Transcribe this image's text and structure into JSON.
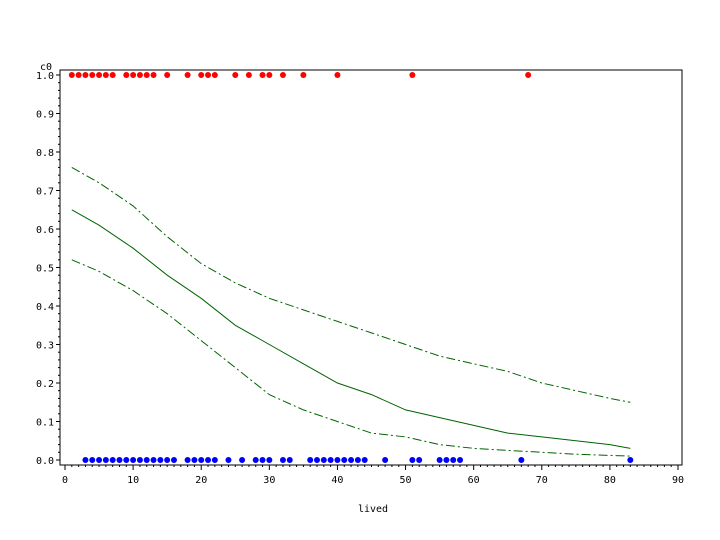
{
  "chart_data": {
    "type": "scatter",
    "title": "",
    "xlabel": "lived",
    "ylabel": "c0",
    "xlim": [
      0,
      90
    ],
    "ylim": [
      0.0,
      1.0
    ],
    "x_ticks": [
      "0",
      "10",
      "20",
      "30",
      "40",
      "50",
      "60",
      "70",
      "80",
      "90"
    ],
    "y_ticks": [
      "0.0",
      "0.1",
      "0.2",
      "0.3",
      "0.4",
      "0.5",
      "0.6",
      "0.7",
      "0.8",
      "0.9",
      "1.0"
    ],
    "grid": false,
    "legend": "none",
    "series": [
      {
        "kind": "points",
        "color": "#ff0000",
        "y": 1.0,
        "x": [
          1,
          2,
          3,
          4,
          5,
          6,
          7,
          9,
          10,
          11,
          12,
          13,
          15,
          18,
          20,
          21,
          22,
          25,
          27,
          29,
          30,
          32,
          35,
          40,
          51,
          68
        ]
      },
      {
        "kind": "points",
        "color": "#0000ff",
        "y": 0.0,
        "x": [
          3,
          4,
          5,
          6,
          7,
          8,
          9,
          10,
          11,
          12,
          13,
          14,
          15,
          16,
          18,
          19,
          20,
          21,
          22,
          24,
          26,
          28,
          29,
          30,
          32,
          33,
          36,
          37,
          38,
          39,
          40,
          41,
          42,
          43,
          44,
          47,
          51,
          52,
          55,
          56,
          57,
          58,
          67,
          83
        ]
      },
      {
        "kind": "line",
        "style": "solid",
        "color": "#006400",
        "x": [
          1,
          5,
          10,
          15,
          20,
          25,
          30,
          35,
          40,
          45,
          50,
          55,
          60,
          65,
          70,
          75,
          80,
          83
        ],
        "y": [
          0.65,
          0.61,
          0.55,
          0.48,
          0.42,
          0.35,
          0.3,
          0.25,
          0.2,
          0.17,
          0.13,
          0.11,
          0.09,
          0.07,
          0.06,
          0.05,
          0.04,
          0.03
        ]
      },
      {
        "kind": "line",
        "style": "dashed",
        "color": "#006400",
        "x": [
          1,
          5,
          10,
          15,
          20,
          25,
          30,
          35,
          40,
          45,
          50,
          55,
          60,
          65,
          70,
          75,
          80,
          83
        ],
        "y": [
          0.76,
          0.72,
          0.66,
          0.58,
          0.51,
          0.46,
          0.42,
          0.39,
          0.36,
          0.33,
          0.3,
          0.27,
          0.25,
          0.23,
          0.2,
          0.18,
          0.16,
          0.15
        ]
      },
      {
        "kind": "line",
        "style": "dashed",
        "color": "#006400",
        "x": [
          1,
          5,
          10,
          15,
          20,
          25,
          30,
          35,
          40,
          45,
          50,
          55,
          60,
          65,
          70,
          75,
          80,
          83
        ],
        "y": [
          0.52,
          0.49,
          0.44,
          0.38,
          0.31,
          0.24,
          0.17,
          0.13,
          0.1,
          0.07,
          0.06,
          0.04,
          0.03,
          0.025,
          0.02,
          0.015,
          0.012,
          0.01
        ]
      }
    ]
  }
}
